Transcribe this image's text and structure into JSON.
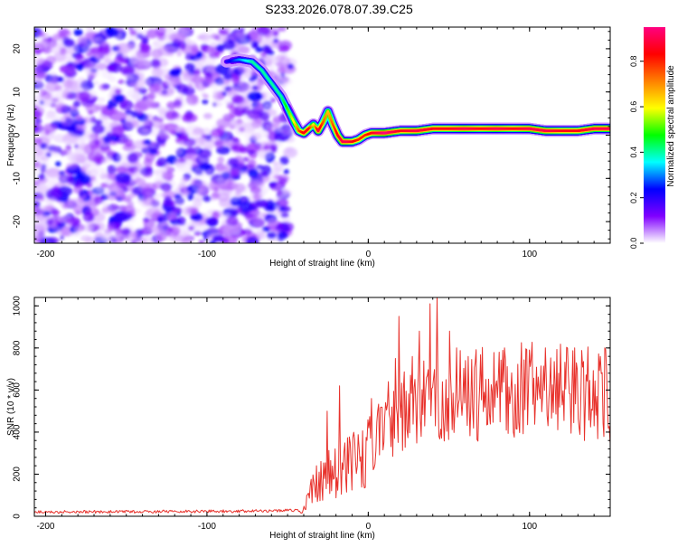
{
  "chart_data": [
    {
      "type": "heatmap",
      "title": "S233.2026.078.07.39.C25",
      "xlabel": "Height of straight line (km)",
      "ylabel": "Frequency (Hz)",
      "xlim": [
        -207,
        150
      ],
      "ylim": [
        -25,
        25
      ],
      "xticks": [
        -200,
        -100,
        0,
        100
      ],
      "yticks": [
        -20,
        -10,
        0,
        10,
        20
      ],
      "xtick_labels": [
        "-200",
        "-100",
        "0",
        "100"
      ],
      "ytick_labels": [
        "-20",
        "-10",
        "0",
        "10",
        "20"
      ],
      "colorbar": {
        "label": "Normalized spectral amplitude",
        "range": [
          0.0,
          0.95
        ],
        "ticks": [
          0.0,
          0.2,
          0.4,
          0.6,
          0.8
        ],
        "tick_labels": [
          "0.0",
          "0.2",
          "0.4",
          "0.6",
          "0.8"
        ],
        "colors": [
          "#ffffff",
          "#8000ff",
          "#0000ff",
          "#00ffff",
          "#00ff00",
          "#ffff00",
          "#ff8000",
          "#ff0000",
          "#ff0080"
        ]
      },
      "noise_region_x": [
        -207,
        -48
      ],
      "ridge": {
        "x": [
          -88,
          -80,
          -72,
          -66,
          -60,
          -54,
          -50,
          -46,
          -43,
          -40,
          -37,
          -34,
          -31,
          -28,
          -25,
          -22,
          -19,
          -16,
          -13,
          -10,
          -6,
          -2,
          2,
          6,
          10,
          20,
          30,
          40,
          50,
          60,
          70,
          80,
          90,
          100,
          110,
          120,
          130,
          140,
          150
        ],
        "y": [
          17,
          17.5,
          17,
          15,
          12,
          9,
          6,
          3,
          1,
          0.5,
          1.5,
          2.5,
          1,
          3,
          5.5,
          2.5,
          0,
          -1.5,
          -1.5,
          -1.5,
          -1,
          0,
          0.5,
          0.5,
          0.5,
          1,
          1,
          1.5,
          1.5,
          1.5,
          1.5,
          1.5,
          1.5,
          1.5,
          1,
          1,
          1,
          1.5,
          1.5
        ],
        "amplitude": [
          0.2,
          0.3,
          0.4,
          0.4,
          0.4,
          0.4,
          0.5,
          0.6,
          0.75,
          0.85,
          0.85,
          0.6,
          0.9,
          0.75,
          0.65,
          0.75,
          0.85,
          0.9,
          0.9,
          0.85,
          0.8,
          0.8,
          0.85,
          0.9,
          0.95,
          0.85,
          0.9,
          0.85,
          0.85,
          0.9,
          0.85,
          0.9,
          0.85,
          0.9,
          0.9,
          0.85,
          0.85,
          0.9,
          0.9
        ]
      }
    },
    {
      "type": "line",
      "xlabel": "Height of straight line (km)",
      "ylabel": "SNR (10 * v/v)",
      "xlim": [
        -207,
        150
      ],
      "ylim": [
        0,
        1040
      ],
      "xticks": [
        -200,
        -100,
        0,
        100
      ],
      "yticks": [
        0,
        200,
        400,
        600,
        800,
        1000
      ],
      "xtick_labels": [
        "-200",
        "-100",
        "0",
        "100"
      ],
      "ytick_labels": [
        "0",
        "200",
        "400",
        "600",
        "800",
        "1000"
      ],
      "series": [
        {
          "name": "SNR",
          "color": "#e8322c",
          "envelope_x": [
            -207,
            -140,
            -60,
            -40,
            -36,
            -33,
            -30,
            -26,
            -22,
            -18,
            -14,
            -10,
            -6,
            -2,
            2,
            6,
            10,
            14,
            18,
            22,
            26,
            30,
            34,
            40,
            50,
            60,
            70,
            80,
            90,
            100,
            110,
            120,
            130,
            140,
            150
          ],
          "envelope_y": [
            20,
            22,
            25,
            30,
            120,
            160,
            180,
            200,
            230,
            210,
            250,
            280,
            310,
            330,
            370,
            400,
            430,
            460,
            500,
            520,
            540,
            560,
            570,
            580,
            590,
            600,
            610,
            620,
            620,
            620,
            620,
            615,
            610,
            605,
            600
          ],
          "peaks_x": [
            -30,
            -25,
            -18,
            2,
            12,
            17,
            19,
            27,
            32,
            38,
            43,
            50,
            55,
            62,
            72,
            85,
            98,
            110,
            128,
            140,
            147,
            150
          ],
          "peaks_y": [
            460,
            500,
            620,
            560,
            640,
            750,
            950,
            760,
            880,
            1010,
            1040,
            880,
            800,
            760,
            860,
            800,
            880,
            800,
            800,
            800,
            800,
            850
          ]
        }
      ]
    }
  ]
}
